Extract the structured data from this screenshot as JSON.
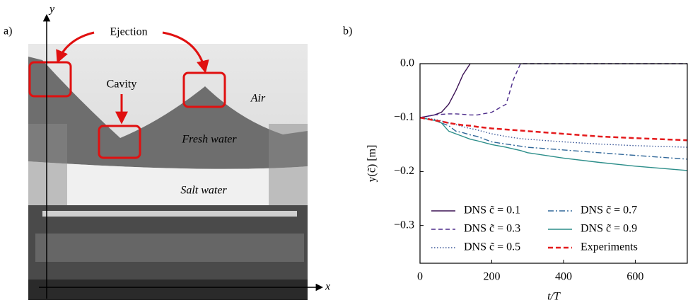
{
  "panel_a": {
    "label": "a)",
    "axis_x": "x",
    "axis_y": "y",
    "annotations": [
      "Ejection",
      "Cavity",
      "Air",
      "Fresh water",
      "Salt water"
    ]
  },
  "chart_data": {
    "type": "line",
    "label": "b)",
    "x_label": "t/T",
    "y_label": "y(c̃) [m]",
    "x": [
      0,
      40,
      60,
      80,
      100,
      120,
      140,
      160,
      200,
      240,
      260,
      280,
      300,
      400,
      500,
      600,
      745
    ],
    "xlim": [
      0,
      745
    ],
    "xticks": [
      0,
      200,
      400,
      600
    ],
    "ylim": [
      -0.37,
      0.0
    ],
    "yticks": [
      {
        "value": -0.3,
        "label": "−0.3"
      },
      {
        "value": -0.2,
        "label": "−0.2"
      },
      {
        "value": -0.1,
        "label": "−0.1"
      },
      {
        "value": 0.0,
        "label": "0.0"
      }
    ],
    "legend": "lower left",
    "series": [
      {
        "name": "DNS c̃ = 0.1",
        "color": "#3b1254",
        "dash": "solid",
        "values": [
          -0.1,
          -0.095,
          -0.09,
          -0.075,
          -0.05,
          -0.02,
          0,
          null,
          null,
          null,
          null,
          null,
          null,
          null,
          null,
          null,
          null
        ]
      },
      {
        "name": "DNS c̃ = 0.3",
        "color": "#4b2a8a",
        "dash": "dashed",
        "values": [
          -0.1,
          -0.095,
          -0.094,
          -0.093,
          -0.093,
          -0.094,
          -0.095,
          -0.095,
          -0.09,
          -0.075,
          -0.03,
          0,
          0,
          0,
          0,
          0,
          0
        ]
      },
      {
        "name": "DNS c̃ = 0.5",
        "color": "#3e5a9a",
        "dash": "dotted",
        "values": [
          -0.1,
          -0.103,
          -0.106,
          -0.11,
          -0.113,
          -0.117,
          -0.12,
          -0.123,
          -0.13,
          -0.135,
          -0.137,
          -0.139,
          -0.14,
          -0.145,
          -0.149,
          -0.152,
          -0.155
        ]
      },
      {
        "name": "DNS c̃ = 0.7",
        "color": "#32689a",
        "dash": "dashdot",
        "values": [
          -0.1,
          -0.105,
          -0.11,
          -0.115,
          -0.125,
          -0.128,
          -0.132,
          -0.135,
          -0.145,
          -0.149,
          -0.151,
          -0.153,
          -0.155,
          -0.16,
          -0.165,
          -0.17,
          -0.177
        ]
      },
      {
        "name": "DNS c̃ = 0.9",
        "color": "#2c8e8a",
        "dash": "solid",
        "values": [
          -0.1,
          -0.105,
          -0.11,
          -0.125,
          -0.13,
          -0.135,
          -0.14,
          -0.143,
          -0.15,
          -0.155,
          -0.158,
          -0.161,
          -0.165,
          -0.175,
          -0.183,
          -0.19,
          -0.198
        ]
      },
      {
        "name": "Experiments",
        "color": "#e41a1c",
        "dash": "dashed-bold",
        "values": [
          -0.1,
          -0.105,
          -0.107,
          -0.11,
          -0.112,
          -0.114,
          -0.115,
          -0.117,
          -0.12,
          -0.122,
          -0.123,
          -0.124,
          -0.125,
          -0.13,
          -0.135,
          -0.138,
          -0.142
        ]
      }
    ]
  }
}
